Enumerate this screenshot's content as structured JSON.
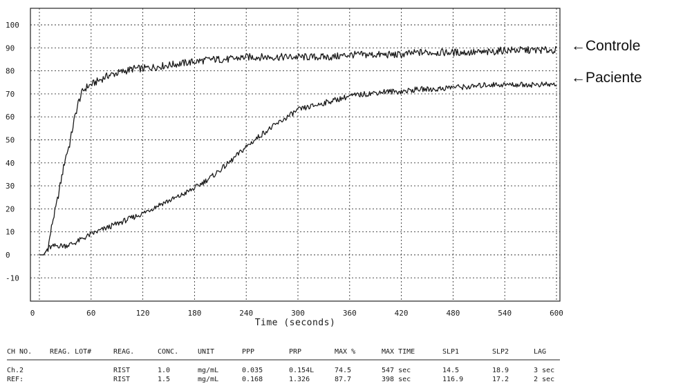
{
  "chart_data": {
    "type": "line",
    "xlabel": "Time (seconds)",
    "ylabel": "",
    "title": "",
    "xlim": [
      -12,
      600
    ],
    "ylim": [
      -20,
      110
    ],
    "x_ticks": [
      0,
      60,
      120,
      180,
      240,
      300,
      360,
      420,
      480,
      540,
      600
    ],
    "y_ticks": [
      100,
      90,
      80,
      70,
      60,
      50,
      40,
      30,
      20,
      10,
      0,
      -10
    ],
    "x_tick_labels": [
      "0",
      "60",
      "120",
      "180",
      "240",
      "300",
      "360",
      "420",
      "480",
      "540",
      "600"
    ],
    "y_tick_labels": [
      "100",
      "90",
      "80",
      "70",
      "60",
      "50",
      "40",
      "30",
      "20",
      "10",
      "0",
      "-10"
    ],
    "grid": true,
    "series": [
      {
        "name": "←Controle",
        "color": "#1a1a1a",
        "x": [
          0,
          5,
          10,
          15,
          20,
          25,
          30,
          35,
          40,
          45,
          50,
          55,
          60,
          70,
          80,
          90,
          100,
          110,
          120,
          140,
          160,
          180,
          200,
          220,
          240,
          260,
          280,
          300,
          320,
          340,
          360,
          380,
          400,
          420,
          440,
          460,
          480,
          500,
          520,
          540,
          560,
          580,
          600
        ],
        "y": [
          0,
          0,
          3,
          14,
          22,
          32,
          42,
          48,
          58,
          66,
          71,
          73,
          74,
          76,
          78,
          79,
          80,
          81,
          81,
          82,
          83,
          84,
          85,
          85,
          86,
          86,
          86,
          86,
          86,
          86,
          87,
          87,
          87,
          87,
          88,
          88,
          88,
          88,
          88,
          89,
          89,
          89,
          89
        ]
      },
      {
        "name": "←Paciente",
        "color": "#1a1a1a",
        "x": [
          0,
          5,
          10,
          20,
          30,
          40,
          50,
          60,
          80,
          100,
          120,
          140,
          160,
          180,
          200,
          220,
          240,
          260,
          280,
          300,
          320,
          340,
          360,
          380,
          400,
          420,
          440,
          460,
          480,
          500,
          520,
          540,
          560,
          580,
          600
        ],
        "y": [
          0,
          0,
          3,
          4,
          4,
          5,
          7,
          9,
          12,
          15,
          18,
          22,
          25,
          29,
          34,
          40,
          47,
          53,
          58,
          63,
          65,
          67,
          69,
          70,
          71,
          71,
          72,
          72,
          73,
          73,
          74,
          74,
          74,
          74,
          74
        ]
      }
    ]
  },
  "table": {
    "headers": [
      "CH NO.",
      "REAG. LOT#",
      "REAG.",
      "CONC.",
      "UNIT",
      "PPP",
      "PRP",
      "MAX %",
      "MAX TIME",
      "SLP1",
      "SLP2",
      "LAG"
    ],
    "rows": [
      [
        "Ch.2",
        "",
        "RIST",
        "1.0",
        "mg/mL",
        "0.035",
        "0.154L",
        "74.5",
        "547 sec",
        "14.5",
        "18.9",
        "3 sec"
      ],
      [
        "REF:",
        "",
        "RIST",
        "1.5",
        "mg/mL",
        "0.168",
        "1.326",
        "87.7",
        "398 sec",
        "116.9",
        "17.2",
        "2 sec"
      ]
    ]
  }
}
